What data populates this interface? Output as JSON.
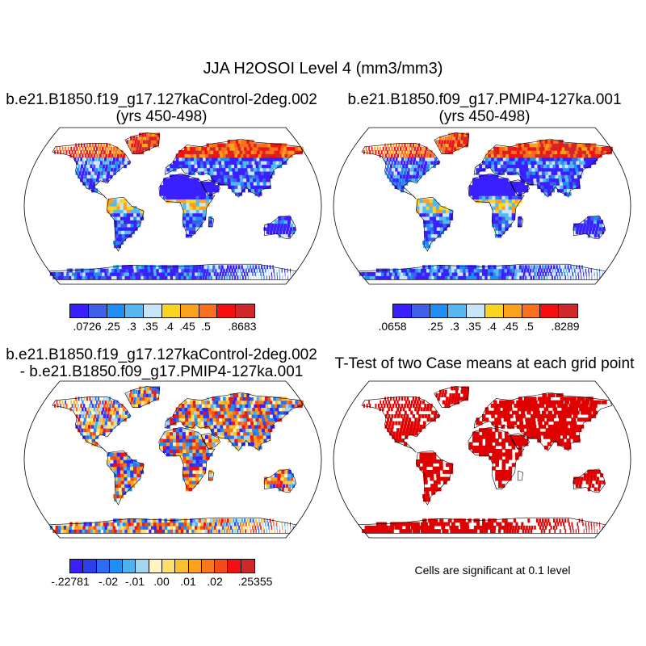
{
  "figure": {
    "title": "JJA H2OSOI Level 4 (mm3/mm3)"
  },
  "panels": [
    {
      "title_line1": "b.e21.B1850.f19_g17.127kaControl-2deg.002",
      "title_line2": "(yrs 450-498)",
      "colorbar": {
        "colors": [
          "#3a1fff",
          "#3f5fe8",
          "#1e8ff5",
          "#55b8f0",
          "#c9e6f7",
          "#f9d423",
          "#fba11c",
          "#f86f1c",
          "#f50f10",
          "#d0282a"
        ],
        "labels": [
          ".0726",
          ".25",
          ".3",
          ".35",
          ".4",
          ".45",
          ".5",
          ".8683"
        ]
      }
    },
    {
      "title_line1": "b.e21.B1850.f09_g17.PMIP4-127ka.001",
      "title_line2": "(yrs 450-498)",
      "colorbar": {
        "colors": [
          "#3a1fff",
          "#3f5fe8",
          "#1e8ff5",
          "#55b8f0",
          "#c9e6f7",
          "#f9d423",
          "#fba11c",
          "#f86f1c",
          "#f50f10",
          "#d0282a"
        ],
        "labels": [
          ".0658",
          ".25",
          ".3",
          ".35",
          ".4",
          ".45",
          ".5",
          ".8289"
        ]
      }
    },
    {
      "title_line1": "b.e21.B1850.f19_g17.127kaControl-2deg.002",
      "title_line2": "- b.e21.B1850.f09_g17.PMIP4-127ka.001",
      "colorbar": {
        "colors": [
          "#3a1fff",
          "#2c3fe8",
          "#2f6cf2",
          "#1f8ff5",
          "#4db2f2",
          "#a4d6f2",
          "#fff5c0",
          "#fde06a",
          "#f9c22c",
          "#fba11c",
          "#f8781a",
          "#f54b15",
          "#f50f10",
          "#d0282a"
        ],
        "labels": [
          "-.22781",
          "-.02",
          "-.01",
          ".00",
          ".01",
          ".02",
          ".25355"
        ]
      }
    },
    {
      "title_line1": "T-Test of two Case means at each grid point",
      "note": "Cells are significant at 0.1 level",
      "significant_color": "#e00000"
    }
  ],
  "map": {
    "projection": "robinson",
    "coastline_color": "#000000",
    "sea_color": "#ffffff"
  }
}
